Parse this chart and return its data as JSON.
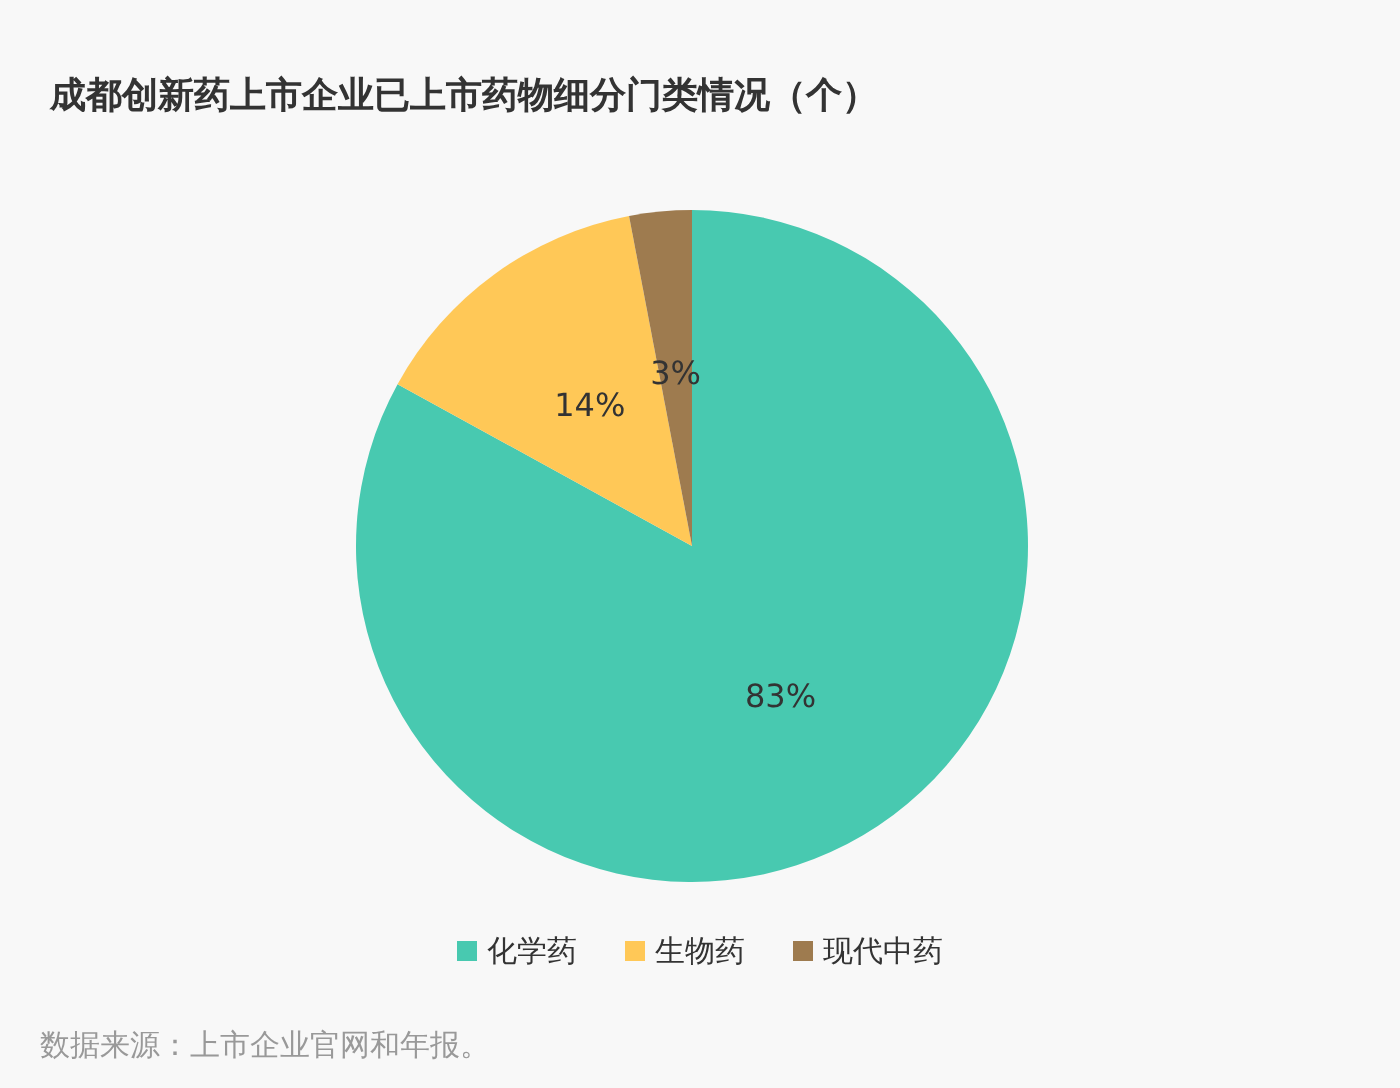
{
  "chart_data": {
    "type": "pie",
    "title": "成都创新药上市企业已上市药物细分门类情况（个）",
    "categories": [
      "化学药",
      "生物药",
      "现代中药"
    ],
    "values": [
      83,
      14,
      3
    ],
    "value_labels": [
      "83%",
      "14%",
      "3%"
    ],
    "colors": [
      "#48c9b0",
      "#ffc857",
      "#9e7b4f"
    ],
    "legend": "bottom",
    "annotations": [
      "数据来源：上市企业官网和年报。"
    ]
  }
}
